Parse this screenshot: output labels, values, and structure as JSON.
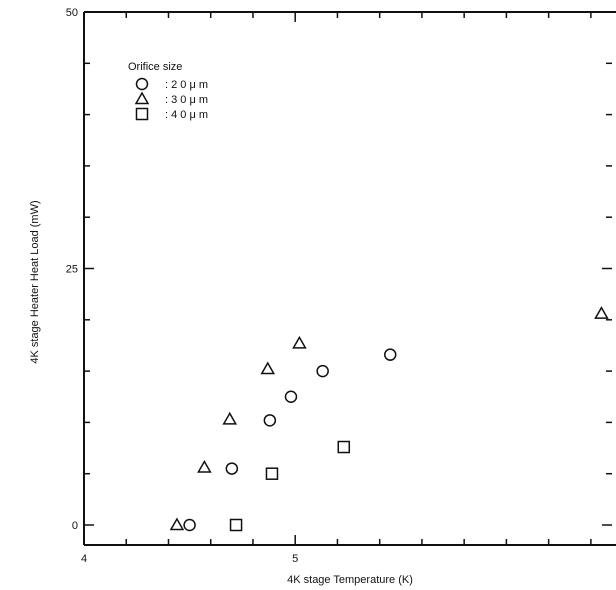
{
  "chart_data": {
    "type": "scatter",
    "title": "",
    "xlabel": "4K stage Temperature (K)",
    "ylabel": "4K stage Heater Heat Load  (mW)",
    "xlim": [
      4,
      6.5
    ],
    "ylim": [
      0,
      50
    ],
    "xticks": [
      {
        "value": 4,
        "label": "4"
      },
      {
        "value": 5,
        "label": "5"
      }
    ],
    "yticks": [
      {
        "value": 0,
        "label": "0"
      },
      {
        "value": 25,
        "label": "25"
      },
      {
        "value": 50,
        "label": "50"
      }
    ],
    "x_minor_step": 0.2,
    "y_minor_step": 5,
    "grid": false,
    "legend": {
      "title": "Orifice size",
      "placement": "top-left"
    },
    "series": [
      {
        "name": ": 2 0 μ m",
        "marker": "circle",
        "x": [
          4.5,
          4.7,
          4.88,
          4.98,
          5.13,
          5.45
        ],
        "y": [
          0,
          5.5,
          10.2,
          12.5,
          15,
          16.6
        ]
      },
      {
        "name": ": 3 0 μ m",
        "marker": "triangle",
        "x": [
          4.44,
          4.57,
          4.69,
          4.87,
          5.02,
          6.45
        ],
        "y": [
          0,
          5.6,
          10.3,
          15.2,
          17.7,
          20.6
        ]
      },
      {
        "name": ": 4 0 μ m",
        "marker": "square",
        "x": [
          4.72,
          4.89,
          5.23
        ],
        "y": [
          0,
          5,
          7.6
        ]
      }
    ],
    "colors": {
      "ink": "#111111",
      "background": "#ffffff"
    }
  }
}
